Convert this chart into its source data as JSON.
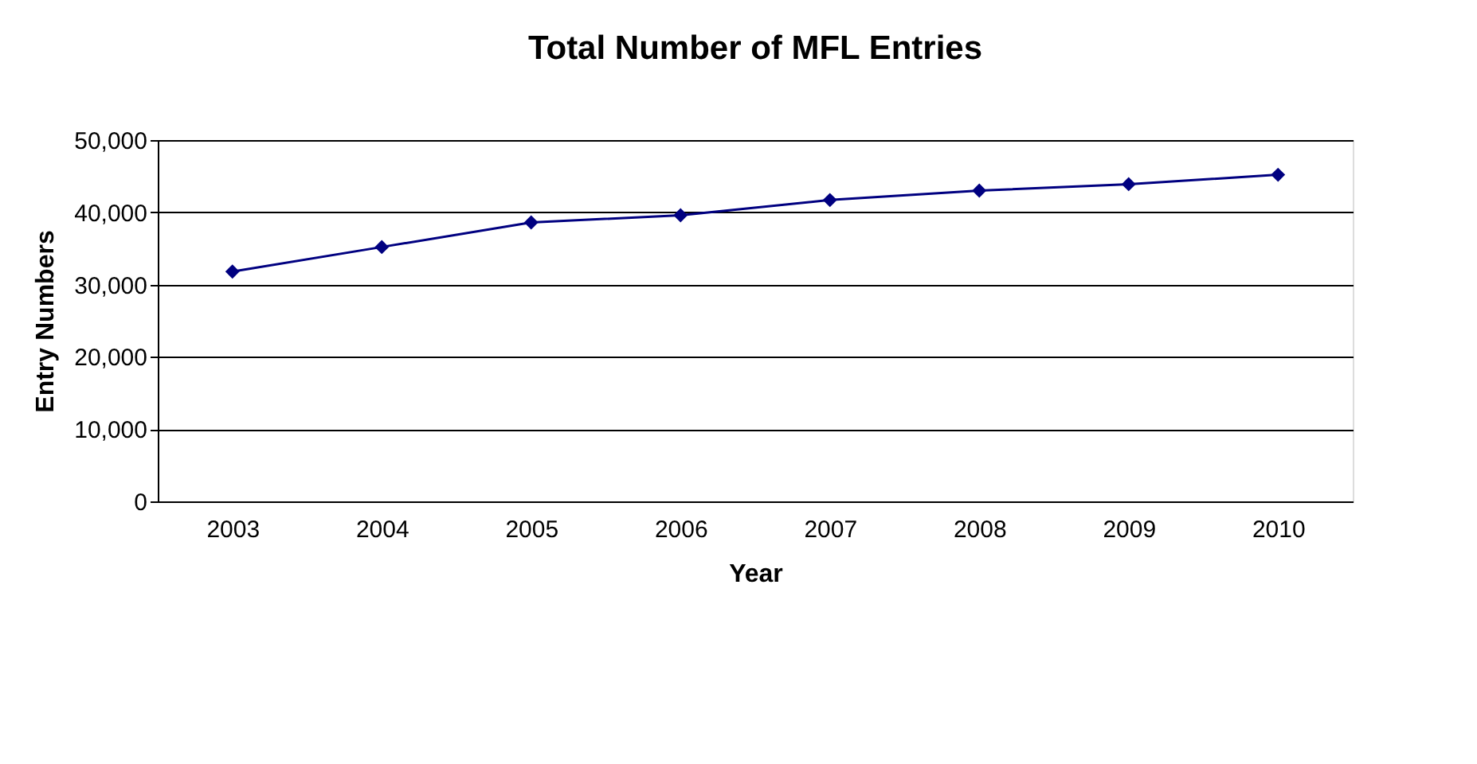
{
  "chart_data": {
    "type": "line",
    "title": "Total Number of MFL Entries",
    "xlabel": "Year",
    "ylabel": "Entry Numbers",
    "categories": [
      "2003",
      "2004",
      "2005",
      "2006",
      "2007",
      "2008",
      "2009",
      "2010"
    ],
    "series": [
      {
        "color": "#000080",
        "values": [
          31800,
          35200,
          38600,
          39600,
          41700,
          43000,
          43900,
          45200
        ]
      }
    ],
    "ylim": [
      0,
      50000
    ],
    "yticks": [
      {
        "value": 0,
        "label": "0"
      },
      {
        "value": 10000,
        "label": "10,000"
      },
      {
        "value": 20000,
        "label": "20,000"
      },
      {
        "value": 30000,
        "label": "30,000"
      },
      {
        "value": 40000,
        "label": "40,000"
      },
      {
        "value": 50000,
        "label": "50,000"
      }
    ],
    "grid": "y",
    "marker": "diamond",
    "line_style": "solid",
    "legend": false
  }
}
